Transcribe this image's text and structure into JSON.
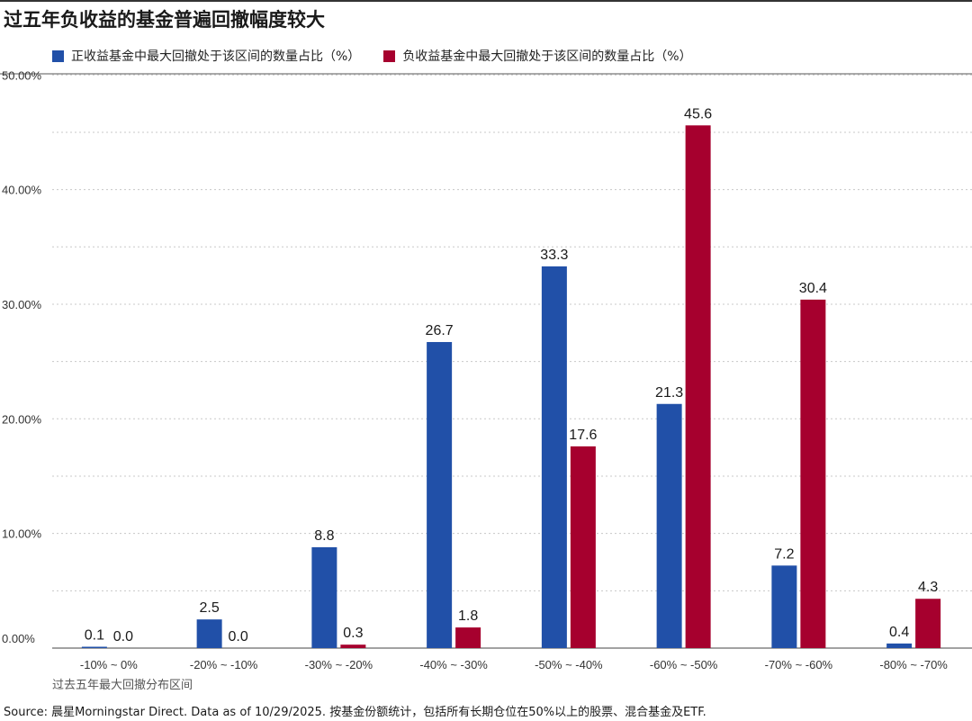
{
  "title": "过五年负收益的基金普遍回撤幅度较大",
  "source": "Source: 晨星Morningstar Direct. Data as of 10/29/2025. 按基金份额统计，包括所有长期仓位在50%以上的股票、混合基金及ETF.",
  "chart_data": {
    "type": "bar",
    "title": "过五年负收益的基金普遍回撤幅度较大",
    "xlabel": "过去五年最大回撤分布区间",
    "ylabel": "",
    "ylim": [
      0,
      50
    ],
    "yticks": [
      "0.00%",
      "10.00%",
      "20.00%",
      "30.00%",
      "40.00%",
      "50.00%"
    ],
    "grid": true,
    "legend_position": "top-left",
    "categories": [
      "-10% ~ 0%",
      "-20% ~ -10%",
      "-30% ~ -20%",
      "-40% ~ -30%",
      "-50% ~ -40%",
      "-60% ~ -50%",
      "-70% ~ -60%",
      "-80% ~ -70%"
    ],
    "series": [
      {
        "name": "正收益基金中最大回撤处于该区间的数量占比（%）",
        "color": "#2150a8",
        "values": [
          0.1,
          2.5,
          8.8,
          26.7,
          33.3,
          21.3,
          7.2,
          0.4
        ],
        "labels": [
          "0.1",
          "2.5",
          "8.8",
          "26.7",
          "33.3",
          "21.3",
          "7.2",
          "0.4"
        ]
      },
      {
        "name": "负收益基金中最大回撤处于该区间的数量占比（%）",
        "color": "#a6002e",
        "values": [
          0.0,
          0.0,
          0.3,
          1.8,
          17.6,
          45.6,
          30.4,
          4.3
        ],
        "labels": [
          "0.0",
          "0.0",
          "0.3",
          "1.8",
          "17.6",
          "45.6",
          "30.4",
          "4.3"
        ]
      }
    ]
  }
}
